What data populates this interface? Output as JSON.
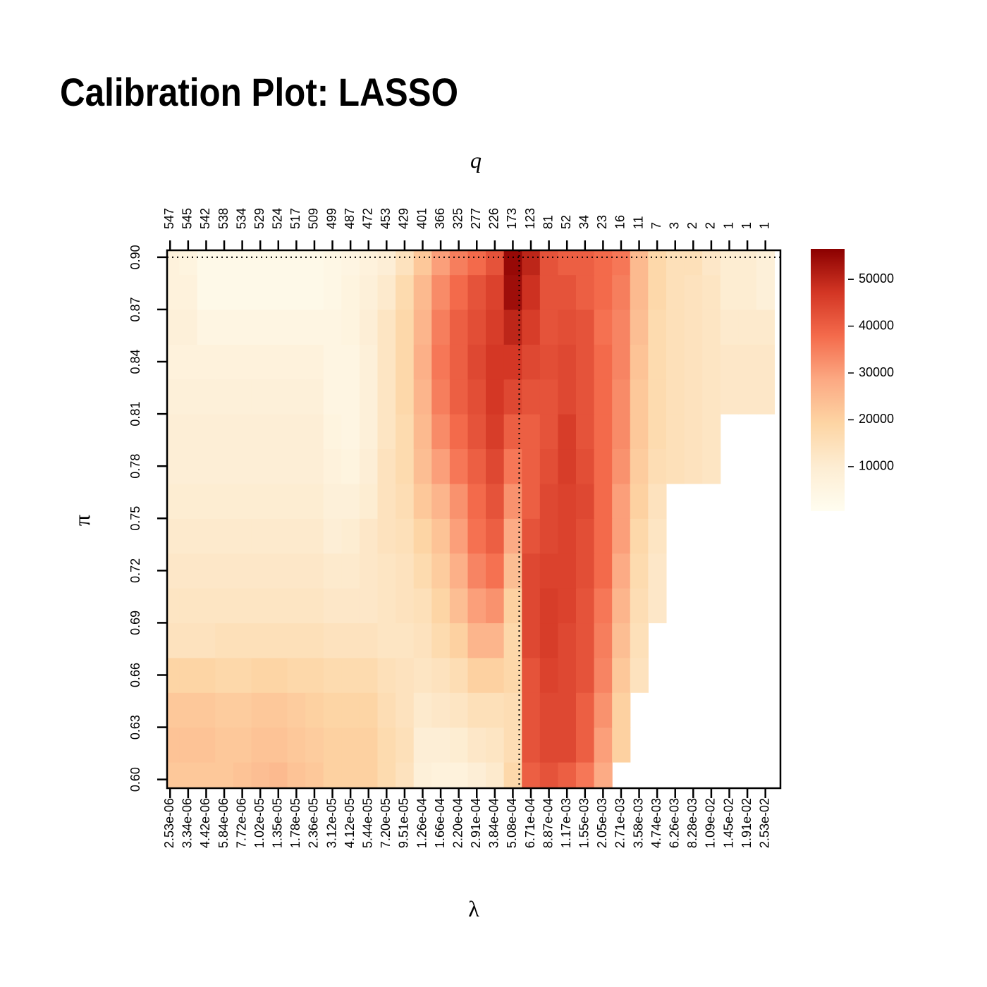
{
  "chart_data": {
    "type": "heatmap",
    "title": "Calibration Plot: LASSO",
    "xlabel": "λ",
    "ylabel": "π",
    "x2label": "q",
    "categories": [
      "2.53e-06",
      "3.34e-06",
      "4.42e-06",
      "5.84e-06",
      "7.72e-06",
      "1.02e-05",
      "1.35e-05",
      "1.78e-05",
      "2.36e-05",
      "3.12e-05",
      "4.12e-05",
      "5.44e-05",
      "7.20e-05",
      "9.51e-05",
      "1.26e-04",
      "1.66e-04",
      "2.20e-04",
      "2.91e-04",
      "3.84e-04",
      "5.08e-04",
      "6.71e-04",
      "8.87e-04",
      "1.17e-03",
      "1.55e-03",
      "2.05e-03",
      "2.71e-03",
      "3.58e-03",
      "4.74e-03",
      "6.26e-03",
      "8.28e-03",
      "1.09e-02",
      "1.45e-02",
      "1.91e-02",
      "2.53e-02"
    ],
    "top_categories": [
      547,
      545,
      542,
      538,
      534,
      529,
      524,
      517,
      509,
      499,
      487,
      472,
      453,
      429,
      401,
      366,
      325,
      277,
      226,
      173,
      123,
      81,
      52,
      34,
      23,
      16,
      11,
      7,
      3,
      2,
      2,
      1,
      1,
      1
    ],
    "y": [
      0.6,
      0.62,
      0.64,
      0.66,
      0.68,
      0.7,
      0.72,
      0.74,
      0.76,
      0.78,
      0.8,
      0.82,
      0.84,
      0.86,
      0.88,
      0.9
    ],
    "ylim": [
      0.595,
      0.904
    ],
    "yticks": [
      {
        "value": 0.6,
        "label": "0.60"
      },
      {
        "value": 0.63,
        "label": "0.63"
      },
      {
        "value": 0.66,
        "label": "0.66"
      },
      {
        "value": 0.69,
        "label": "0.69"
      },
      {
        "value": 0.72,
        "label": "0.72"
      },
      {
        "value": 0.75,
        "label": "0.75"
      },
      {
        "value": 0.78,
        "label": "0.78"
      },
      {
        "value": 0.81,
        "label": "0.81"
      },
      {
        "value": 0.84,
        "label": "0.84"
      },
      {
        "value": 0.87,
        "label": "0.87"
      },
      {
        "value": 0.9,
        "label": "0.90"
      }
    ],
    "z": [
      [
        22000,
        22000,
        22000,
        22000,
        23000,
        24000,
        25000,
        23000,
        22000,
        20000,
        20000,
        20000,
        17000,
        14000,
        8000,
        7000,
        7000,
        9000,
        11000,
        18000,
        40000,
        42000,
        40000,
        36000,
        28000,
        null,
        null,
        null,
        null,
        null,
        null,
        null,
        null,
        null
      ],
      [
        23000,
        23000,
        23000,
        22000,
        22000,
        23000,
        23000,
        22000,
        21000,
        20000,
        20000,
        20000,
        17000,
        15000,
        9000,
        9000,
        10000,
        12000,
        13000,
        16000,
        42000,
        44000,
        44000,
        40000,
        30000,
        20000,
        null,
        null,
        null,
        null,
        null,
        null,
        null,
        null
      ],
      [
        22000,
        22000,
        22000,
        21000,
        21000,
        22000,
        22000,
        21000,
        20000,
        19000,
        19000,
        19000,
        16000,
        14000,
        11000,
        12000,
        13000,
        15000,
        15000,
        16000,
        42000,
        44000,
        44000,
        40000,
        32000,
        20000,
        null,
        null,
        null,
        null,
        null,
        null,
        null,
        null
      ],
      [
        19000,
        19000,
        19000,
        18000,
        18000,
        19000,
        19000,
        18000,
        18000,
        17000,
        17000,
        17000,
        15000,
        14000,
        13000,
        14000,
        16000,
        20000,
        20000,
        18000,
        42000,
        45000,
        44000,
        42000,
        34000,
        22000,
        14000,
        null,
        null,
        null,
        null,
        null,
        null,
        null
      ],
      [
        14000,
        14000,
        14000,
        15000,
        15000,
        15000,
        15000,
        15000,
        15000,
        14000,
        14000,
        14000,
        13000,
        13000,
        14000,
        17000,
        20000,
        26000,
        26000,
        18000,
        44000,
        46000,
        44000,
        42000,
        35000,
        24000,
        15000,
        null,
        null,
        null,
        null,
        null,
        null,
        null
      ],
      [
        13000,
        13000,
        13000,
        13000,
        13000,
        13000,
        13000,
        13000,
        13000,
        12000,
        12000,
        12000,
        13000,
        14000,
        15000,
        19000,
        24000,
        30000,
        32000,
        20000,
        44000,
        46000,
        45000,
        42000,
        36000,
        26000,
        16000,
        12000,
        null,
        null,
        null,
        null,
        null,
        null
      ],
      [
        12000,
        12000,
        12000,
        12000,
        12000,
        12000,
        12000,
        12000,
        12000,
        11000,
        11000,
        12000,
        13000,
        14000,
        17000,
        21000,
        27000,
        34000,
        37000,
        24000,
        44000,
        45000,
        45000,
        43000,
        38000,
        28000,
        17000,
        12000,
        null,
        null,
        null,
        null,
        null,
        null
      ],
      [
        11000,
        11000,
        11000,
        11000,
        11000,
        11000,
        11000,
        11000,
        11000,
        9000,
        10000,
        12000,
        14000,
        15000,
        19000,
        23000,
        30000,
        37000,
        40000,
        28000,
        42000,
        44000,
        45000,
        43000,
        38000,
        30000,
        18000,
        13000,
        null,
        null,
        null,
        null,
        null,
        null
      ],
      [
        10000,
        10000,
        10000,
        10000,
        10000,
        10000,
        10000,
        10000,
        10000,
        8000,
        8000,
        10000,
        14000,
        16000,
        22000,
        26000,
        32000,
        38000,
        42000,
        32000,
        40000,
        44000,
        45000,
        44000,
        38000,
        30000,
        20000,
        14000,
        null,
        null,
        null,
        null,
        null,
        null
      ],
      [
        9000,
        9000,
        9000,
        9000,
        9000,
        9000,
        9000,
        9000,
        9000,
        7000,
        6000,
        9000,
        14000,
        17000,
        24000,
        30000,
        36000,
        40000,
        44000,
        36000,
        40000,
        43000,
        46000,
        43000,
        38000,
        32000,
        21000,
        16000,
        15000,
        14000,
        13000,
        null,
        null,
        null
      ],
      [
        9000,
        9000,
        9000,
        9000,
        9000,
        9000,
        9000,
        9000,
        9000,
        6000,
        5000,
        8000,
        13000,
        17000,
        25000,
        33000,
        38000,
        42000,
        46000,
        40000,
        40000,
        42000,
        46000,
        42000,
        38000,
        33000,
        22000,
        17000,
        15000,
        14000,
        13000,
        null,
        null,
        null
      ],
      [
        8000,
        8000,
        8000,
        8000,
        8000,
        8000,
        8000,
        8000,
        8000,
        5000,
        5000,
        8000,
        13000,
        18000,
        26000,
        35000,
        40000,
        43000,
        47000,
        44000,
        42000,
        42000,
        44000,
        42000,
        38000,
        33000,
        22000,
        17000,
        15000,
        14000,
        13000,
        12000,
        12000,
        12000
      ],
      [
        7000,
        7000,
        7000,
        7000,
        7000,
        7000,
        7000,
        7000,
        7000,
        5000,
        5000,
        8000,
        13000,
        18000,
        27000,
        36000,
        40000,
        44000,
        47000,
        47000,
        44000,
        43000,
        44000,
        42000,
        38000,
        34000,
        23000,
        17000,
        15000,
        14000,
        13000,
        12000,
        12000,
        12000
      ],
      [
        8000,
        8000,
        5000,
        5000,
        5000,
        5000,
        5000,
        5000,
        5000,
        5000,
        6000,
        9000,
        13000,
        18000,
        26000,
        35000,
        40000,
        43000,
        46000,
        50000,
        46000,
        42000,
        43000,
        42000,
        37000,
        34000,
        24000,
        17000,
        15000,
        14000,
        13000,
        11000,
        11000,
        11000
      ],
      [
        7000,
        7000,
        3000,
        3000,
        3000,
        3000,
        3000,
        3000,
        3000,
        4000,
        6000,
        8000,
        11000,
        17000,
        25000,
        33000,
        38000,
        42000,
        45000,
        54000,
        48000,
        42000,
        42000,
        40000,
        38000,
        35000,
        25000,
        18000,
        15000,
        14000,
        13000,
        10000,
        10000,
        8000
      ],
      [
        7000,
        6000,
        3000,
        3000,
        3000,
        3000,
        3000,
        3000,
        3000,
        4000,
        5000,
        7000,
        9000,
        14000,
        22000,
        30000,
        35000,
        38000,
        42000,
        55000,
        50000,
        42000,
        40000,
        40000,
        38000,
        36000,
        25000,
        18000,
        15000,
        15000,
        12000,
        10000,
        10000,
        8000
      ]
    ],
    "zlim": [
      500,
      56500
    ],
    "zticks": [
      10000,
      20000,
      30000,
      40000,
      50000
    ],
    "palette": [
      "#fffdf0",
      "#fdedd3",
      "#fdd5a4",
      "#fca983",
      "#f46b4c",
      "#d33624",
      "#8b0000"
    ],
    "selected": {
      "x": "5.08e-04",
      "y": 0.9
    }
  }
}
